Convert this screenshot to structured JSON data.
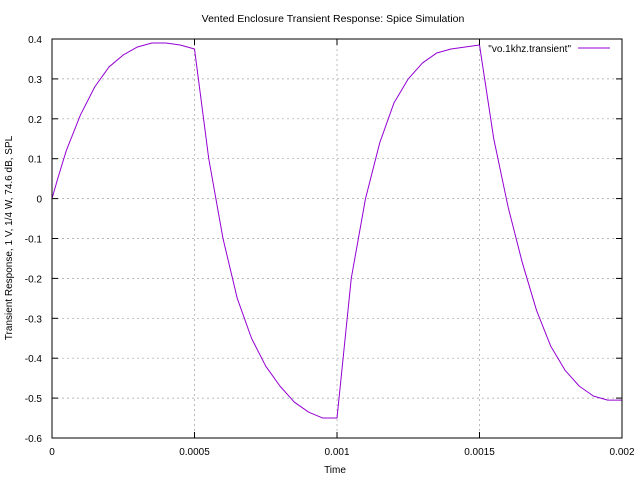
{
  "chart_data": {
    "type": "line",
    "title": "Vented Enclosure Transient Response: Spice Simulation",
    "xlabel": "Time",
    "ylabel": "Transient Response, 1 V, 1/4 W, 74.6 dB, SPL",
    "xlim": [
      0,
      0.002
    ],
    "ylim": [
      -0.6,
      0.4
    ],
    "xticks": [
      0,
      0.0005,
      0.001,
      0.0015,
      0.002
    ],
    "xtick_labels": [
      "0",
      "0.0005",
      "0.001",
      "0.0015",
      "0.002"
    ],
    "yticks": [
      -0.6,
      -0.5,
      -0.4,
      -0.3,
      -0.2,
      -0.1,
      0,
      0.1,
      0.2,
      0.3,
      0.4
    ],
    "ytick_labels": [
      "-0.6",
      "-0.5",
      "-0.4",
      "-0.3",
      "-0.2",
      "-0.1",
      "0",
      "0.1",
      "0.2",
      "0.3",
      "0.4"
    ],
    "grid": true,
    "legend_position": "top-right",
    "series": [
      {
        "name": "\"vo.1khz.transient\"",
        "color": "#9400d3",
        "x": [
          0,
          2e-05,
          5e-05,
          0.0001,
          0.00015,
          0.0002,
          0.00025,
          0.0003,
          0.00035,
          0.0004,
          0.00045,
          0.0005,
          0.00055,
          0.0006,
          0.00065,
          0.0007,
          0.00075,
          0.0008,
          0.00085,
          0.0009,
          0.00095,
          0.001,
          0.00105,
          0.0011,
          0.00115,
          0.0012,
          0.00125,
          0.0013,
          0.00135,
          0.0014,
          0.00145,
          0.0015,
          0.00155,
          0.0016,
          0.00165,
          0.0017,
          0.00175,
          0.0018,
          0.00185,
          0.0019,
          0.00195,
          0.002
        ],
        "y": [
          0,
          0.05,
          0.12,
          0.21,
          0.28,
          0.33,
          0.36,
          0.38,
          0.39,
          0.39,
          0.385,
          0.375,
          0.1,
          -0.1,
          -0.25,
          -0.35,
          -0.42,
          -0.47,
          -0.51,
          -0.535,
          -0.55,
          -0.55,
          -0.2,
          0.0,
          0.14,
          0.24,
          0.3,
          0.34,
          0.365,
          0.375,
          0.38,
          0.385,
          0.15,
          -0.02,
          -0.16,
          -0.28,
          -0.37,
          -0.43,
          -0.47,
          -0.495,
          -0.505,
          -0.505
        ]
      }
    ]
  }
}
